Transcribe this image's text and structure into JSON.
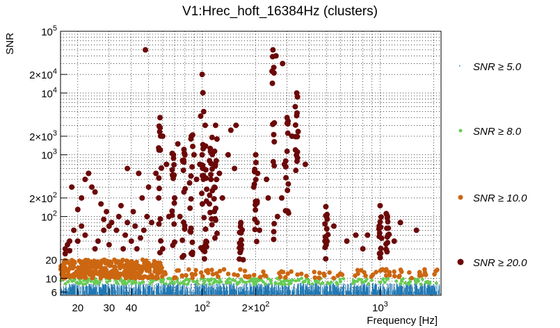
{
  "chart_data": {
    "type": "scatter",
    "title": "V1:Hrec_hoft_16384Hz (clusters)",
    "xlabel": "Frequency [Hz]",
    "ylabel": "SNR",
    "x_scale": "log",
    "y_scale": "log",
    "xlim": [
      16,
      2200
    ],
    "ylim": [
      5.3,
      100000
    ],
    "x_ticks": [
      {
        "v": 20,
        "label": "20"
      },
      {
        "v": 30,
        "label": "30"
      },
      {
        "v": 40,
        "label": "40"
      },
      {
        "v": 100,
        "label": "10^2"
      },
      {
        "v": 200,
        "label": "2×10^2"
      },
      {
        "v": 1000,
        "label": "10^3"
      }
    ],
    "y_ticks": [
      {
        "v": 6,
        "label": "6"
      },
      {
        "v": 10,
        "label": "10"
      },
      {
        "v": 20,
        "label": "20"
      },
      {
        "v": 100,
        "label": "10^2"
      },
      {
        "v": 200,
        "label": "2×10^2"
      },
      {
        "v": 1000,
        "label": "10^3"
      },
      {
        "v": 2000,
        "label": "2×10^3"
      },
      {
        "v": 10000,
        "label": "10^4"
      },
      {
        "v": 20000,
        "label": "2×10^4"
      },
      {
        "v": 100000,
        "label": "10^5"
      }
    ],
    "grid": true,
    "legend_position": "right",
    "series": [
      {
        "name": "SNR ≥ 5.0",
        "color": "#1f77b4",
        "marker": "dot",
        "x_range": [
          16,
          2200
        ],
        "y_range": [
          5.3,
          8.5
        ]
      },
      {
        "name": "SNR ≥ 8.0",
        "color": "#66cc55",
        "marker": "circle",
        "x_range": [
          16,
          2100
        ],
        "y_range": [
          8,
          10
        ]
      },
      {
        "name": "SNR ≥ 10.0",
        "color": "#cc6611",
        "marker": "circle",
        "x_range": [
          16,
          2100
        ],
        "y_range": [
          10,
          20
        ]
      },
      {
        "name": "SNR ≥ 20.0",
        "color": "#6b0808",
        "marker": "circle",
        "points": [
          [
            17,
            30
          ],
          [
            17,
            25
          ],
          [
            17.5,
            35
          ],
          [
            18,
            28
          ],
          [
            18,
            40
          ],
          [
            18.5,
            300
          ],
          [
            19,
            60
          ],
          [
            20,
            40
          ],
          [
            20,
            130
          ],
          [
            21,
            200
          ],
          [
            21,
            70
          ],
          [
            22,
            50
          ],
          [
            22,
            400
          ],
          [
            23,
            500
          ],
          [
            24,
            300
          ],
          [
            25,
            250
          ],
          [
            25,
            30
          ],
          [
            26,
            40
          ],
          [
            27,
            160
          ],
          [
            28,
            90
          ],
          [
            28,
            60
          ],
          [
            29,
            120
          ],
          [
            30,
            35
          ],
          [
            30,
            70
          ],
          [
            31,
            80
          ],
          [
            33,
            60
          ],
          [
            34,
            100
          ],
          [
            35,
            150
          ],
          [
            36,
            30
          ],
          [
            37,
            50
          ],
          [
            38,
            80
          ],
          [
            38,
            600
          ],
          [
            40,
            40
          ],
          [
            41,
            120
          ],
          [
            42,
            70
          ],
          [
            43,
            30
          ],
          [
            44,
            500
          ],
          [
            45,
            45
          ],
          [
            46,
            200
          ],
          [
            47,
            60
          ],
          [
            48,
            50000
          ],
          [
            49,
            100
          ],
          [
            50,
            300
          ],
          [
            52,
            80
          ],
          [
            55,
            500
          ],
          [
            57,
            200
          ],
          [
            58,
            4000
          ],
          [
            60,
            2000
          ],
          [
            60,
            30
          ],
          [
            63,
            700
          ],
          [
            65,
            100
          ],
          [
            69,
            1000
          ],
          [
            70,
            200
          ],
          [
            73,
            1500
          ],
          [
            75,
            100
          ],
          [
            79,
            250
          ],
          [
            80,
            1000
          ],
          [
            85,
            350
          ],
          [
            87,
            2000
          ],
          [
            90,
            1000
          ],
          [
            93,
            400
          ],
          [
            97,
            700
          ],
          [
            100,
            1000
          ],
          [
            100,
            20000
          ],
          [
            102,
            5000
          ],
          [
            104,
            3000
          ],
          [
            110,
            800
          ],
          [
            112,
            400
          ],
          [
            119,
            3000
          ],
          [
            120,
            800
          ],
          [
            125,
            500
          ],
          [
            130,
            200
          ],
          [
            140,
            1000
          ],
          [
            145,
            2500
          ],
          [
            152,
            600
          ],
          [
            155,
            3000
          ],
          [
            165,
            80
          ],
          [
            170,
            20
          ],
          [
            195,
            300
          ],
          [
            200,
            1000
          ],
          [
            205,
            500
          ],
          [
            210,
            60
          ],
          [
            230,
            400
          ],
          [
            235,
            200
          ],
          [
            250,
            50000
          ],
          [
            260,
            40000
          ],
          [
            265,
            100
          ],
          [
            280,
            200
          ],
          [
            283,
            30000
          ],
          [
            290,
            700
          ],
          [
            300,
            4000
          ],
          [
            320,
            2000
          ],
          [
            340,
            10000
          ],
          [
            380,
            700
          ],
          [
            490,
            40
          ],
          [
            500,
            100
          ],
          [
            550,
            70
          ],
          [
            650,
            40
          ],
          [
            730,
            50
          ],
          [
            800,
            30
          ],
          [
            850,
            50
          ],
          [
            1000,
            150
          ],
          [
            1100,
            100
          ],
          [
            1200,
            40
          ],
          [
            1300,
            80
          ],
          [
            1600,
            60
          ]
        ]
      }
    ]
  }
}
